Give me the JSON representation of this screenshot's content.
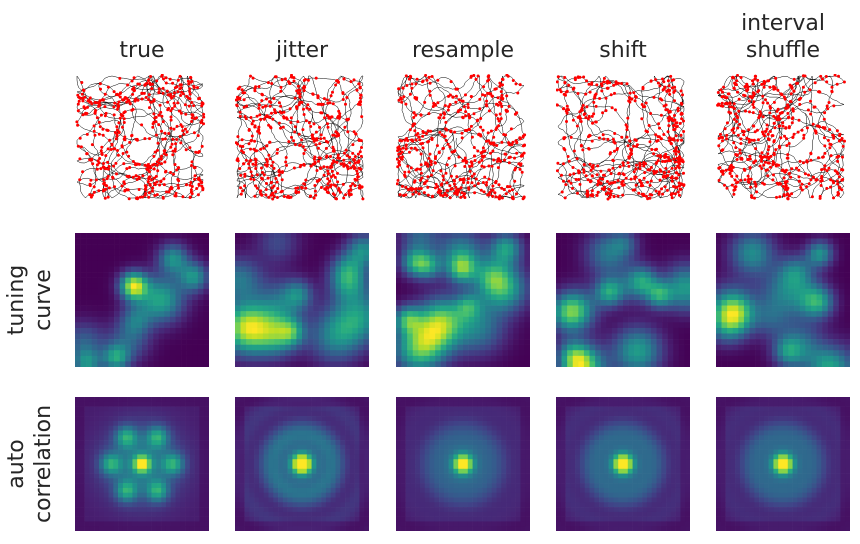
{
  "chart_data": {
    "type": "heatmap",
    "columns": [
      {
        "title_lines": [
          "true"
        ],
        "key": "true"
      },
      {
        "title_lines": [
          "jitter"
        ],
        "key": "jitter"
      },
      {
        "title_lines": [
          "resample"
        ],
        "key": "resample"
      },
      {
        "title_lines": [
          "shift"
        ],
        "key": "shift"
      },
      {
        "title_lines": [
          "interval",
          "shuffle"
        ],
        "key": "interval-shuffle"
      }
    ],
    "rows": [
      {
        "key": "trajectory",
        "label_lines": [],
        "kind": "trajectory with spikes"
      },
      {
        "key": "tuning-curve",
        "label_lines": [
          "tuning",
          "curve"
        ],
        "kind": "rate map"
      },
      {
        "key": "autocorrelation",
        "label_lines": [
          "auto",
          "correlation"
        ],
        "kind": "spatial autocorrelogram"
      }
    ],
    "colormap": "viridis",
    "trajectory_color": "#000000",
    "spike_color": "#ff0000"
  }
}
